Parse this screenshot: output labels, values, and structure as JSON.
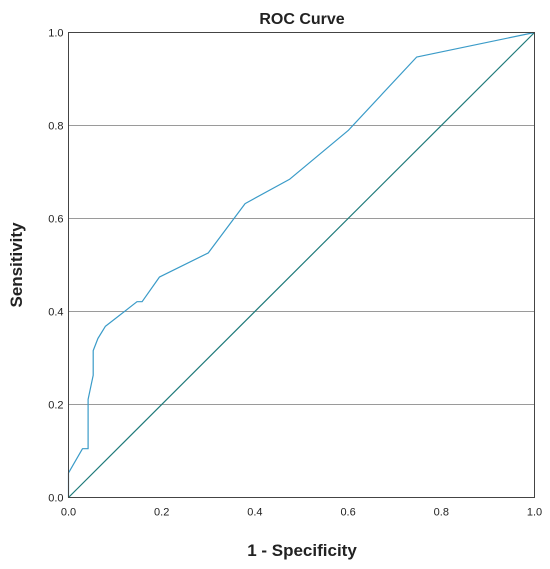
{
  "chart_data": {
    "type": "line",
    "title": "ROC Curve",
    "xlabel": "1 - Specificity",
    "ylabel": "Sensitivity",
    "xlim": [
      0.0,
      1.0
    ],
    "ylim": [
      0.0,
      1.0
    ],
    "x_ticks": [
      "0.0",
      "0.2",
      "0.4",
      "0.6",
      "0.8",
      "1.0"
    ],
    "y_ticks": [
      "0.0",
      "0.2",
      "0.4",
      "0.6",
      "0.8",
      "1.0"
    ],
    "grid": "horizontal",
    "legend": "none",
    "series": [
      {
        "color": "#3a9bc8",
        "x": [
          0.0,
          0.0,
          0.03,
          0.042,
          0.042,
          0.053,
          0.053,
          0.063,
          0.079,
          0.147,
          0.158,
          0.195,
          0.3,
          0.379,
          0.474,
          0.6,
          0.747,
          1.0
        ],
        "y": [
          0.0,
          0.053,
          0.105,
          0.105,
          0.211,
          0.263,
          0.316,
          0.342,
          0.368,
          0.421,
          0.421,
          0.474,
          0.526,
          0.632,
          0.684,
          0.789,
          0.947,
          1.0
        ]
      },
      {
        "color": "#1f7a7a",
        "x": [
          0.0,
          1.0
        ],
        "y": [
          0.0,
          1.0
        ]
      }
    ]
  }
}
